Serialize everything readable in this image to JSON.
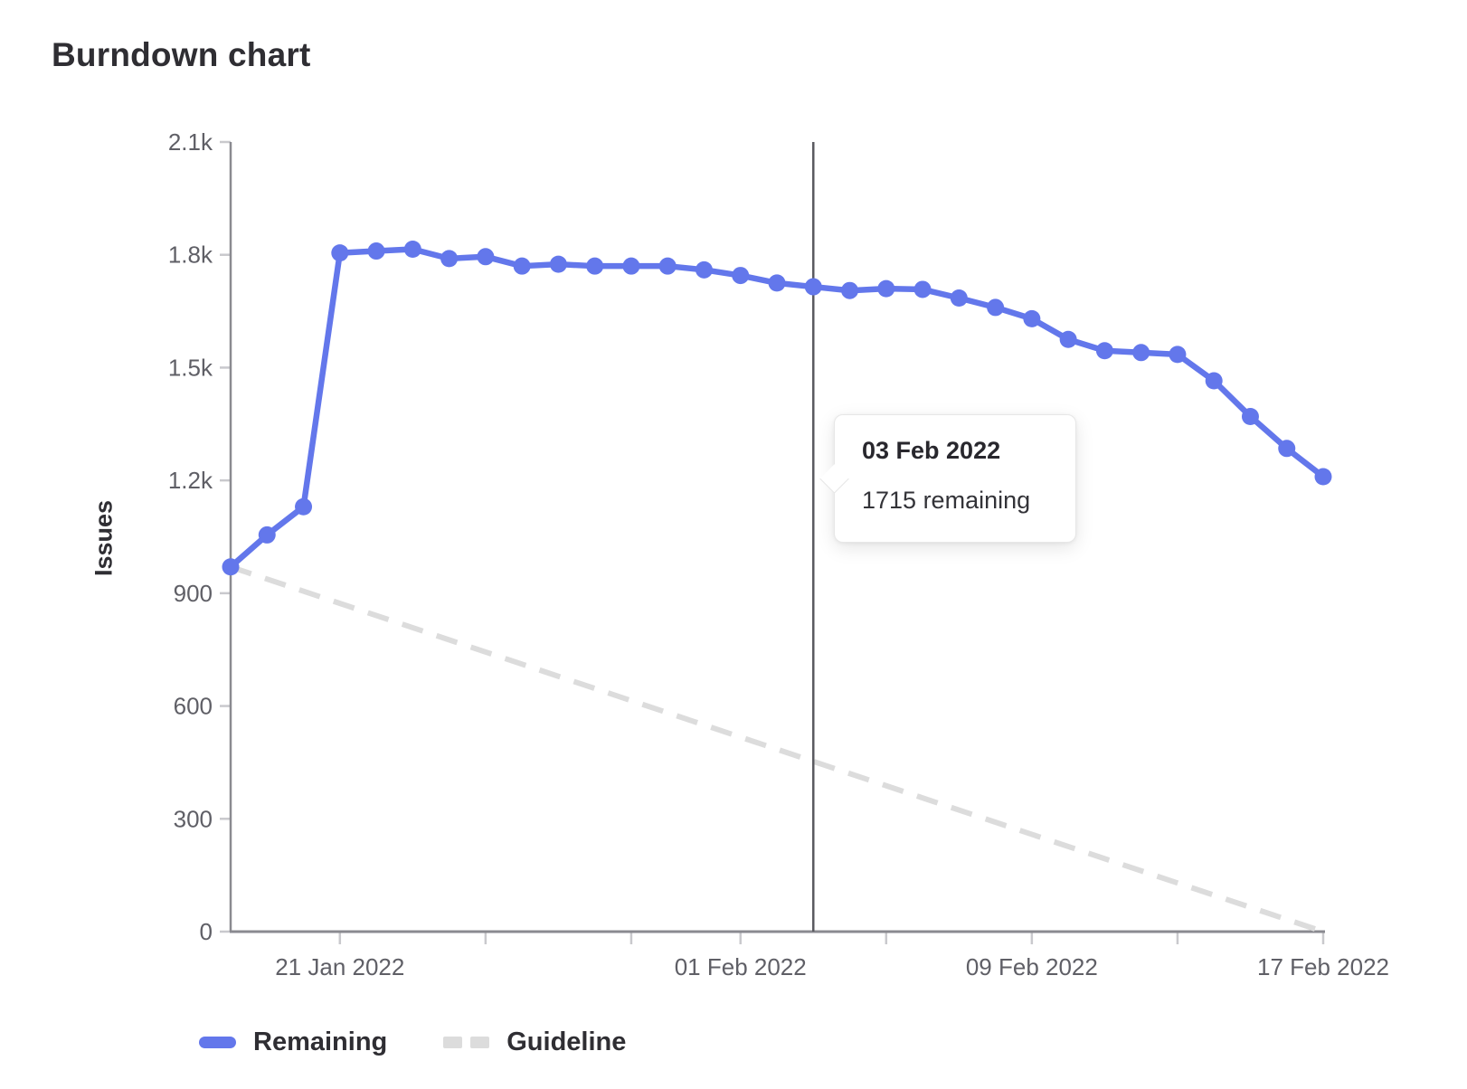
{
  "page": {
    "title": "Burndown chart"
  },
  "chart_data": {
    "type": "line",
    "title": "Burndown chart",
    "xlabel": "",
    "ylabel": "Issues",
    "ylim": [
      0,
      2100
    ],
    "grid": false,
    "legend_position": "bottom",
    "y_ticks": [
      {
        "value": 0,
        "label": "0"
      },
      {
        "value": 300,
        "label": "300"
      },
      {
        "value": 600,
        "label": "600"
      },
      {
        "value": 900,
        "label": "900"
      },
      {
        "value": 1200,
        "label": "1.2k"
      },
      {
        "value": 1500,
        "label": "1.5k"
      },
      {
        "value": 1800,
        "label": "1.8k"
      },
      {
        "value": 2100,
        "label": "2.1k"
      }
    ],
    "x_range_days": 30,
    "x_start_date": "18 Jan 2022",
    "x_end_date": "17 Feb 2022",
    "x_ticks": [
      {
        "day": 3,
        "label": "21 Jan 2022"
      },
      {
        "day": 7,
        "label": ""
      },
      {
        "day": 11,
        "label": ""
      },
      {
        "day": 14,
        "label": "01 Feb 2022"
      },
      {
        "day": 18,
        "label": ""
      },
      {
        "day": 22,
        "label": "09 Feb 2022"
      },
      {
        "day": 26,
        "label": ""
      },
      {
        "day": 30,
        "label": "17 Feb 2022"
      }
    ],
    "x_dates": [
      "18 Jan 2022",
      "19 Jan 2022",
      "20 Jan 2022",
      "21 Jan 2022",
      "22 Jan 2022",
      "23 Jan 2022",
      "24 Jan 2022",
      "25 Jan 2022",
      "26 Jan 2022",
      "27 Jan 2022",
      "28 Jan 2022",
      "29 Jan 2022",
      "30 Jan 2022",
      "31 Jan 2022",
      "01 Feb 2022",
      "02 Feb 2022",
      "03 Feb 2022",
      "04 Feb 2022",
      "05 Feb 2022",
      "06 Feb 2022",
      "07 Feb 2022",
      "08 Feb 2022",
      "09 Feb 2022",
      "10 Feb 2022",
      "11 Feb 2022",
      "12 Feb 2022",
      "13 Feb 2022",
      "14 Feb 2022",
      "15 Feb 2022",
      "16 Feb 2022",
      "17 Feb 2022"
    ],
    "series": [
      {
        "name": "Remaining",
        "style": "solid",
        "color": "#6377eb",
        "values": [
          970,
          1055,
          1130,
          1805,
          1810,
          1815,
          1790,
          1795,
          1770,
          1775,
          1770,
          1770,
          1770,
          1760,
          1745,
          1725,
          1715,
          1705,
          1710,
          1708,
          1685,
          1660,
          1630,
          1575,
          1545,
          1540,
          1535,
          1465,
          1370,
          1285,
          1210
        ]
      },
      {
        "name": "Guideline",
        "style": "dashed",
        "color": "#dcdcdc",
        "points": [
          {
            "day": 0,
            "value": 970
          },
          {
            "day": 30,
            "value": 0
          }
        ]
      }
    ],
    "axis_pointer_day": 16
  },
  "tooltip": {
    "date": "03 Feb 2022",
    "remaining_text": "1715 remaining"
  },
  "colors": {
    "remaining": "#6377eb",
    "guideline": "#dcdcdc",
    "axis": "#8a8a90",
    "tick": "#c9c9cd",
    "axis_label": "#5f5f66",
    "pointer": "#5a5a60",
    "heading": "#2f2e33"
  }
}
